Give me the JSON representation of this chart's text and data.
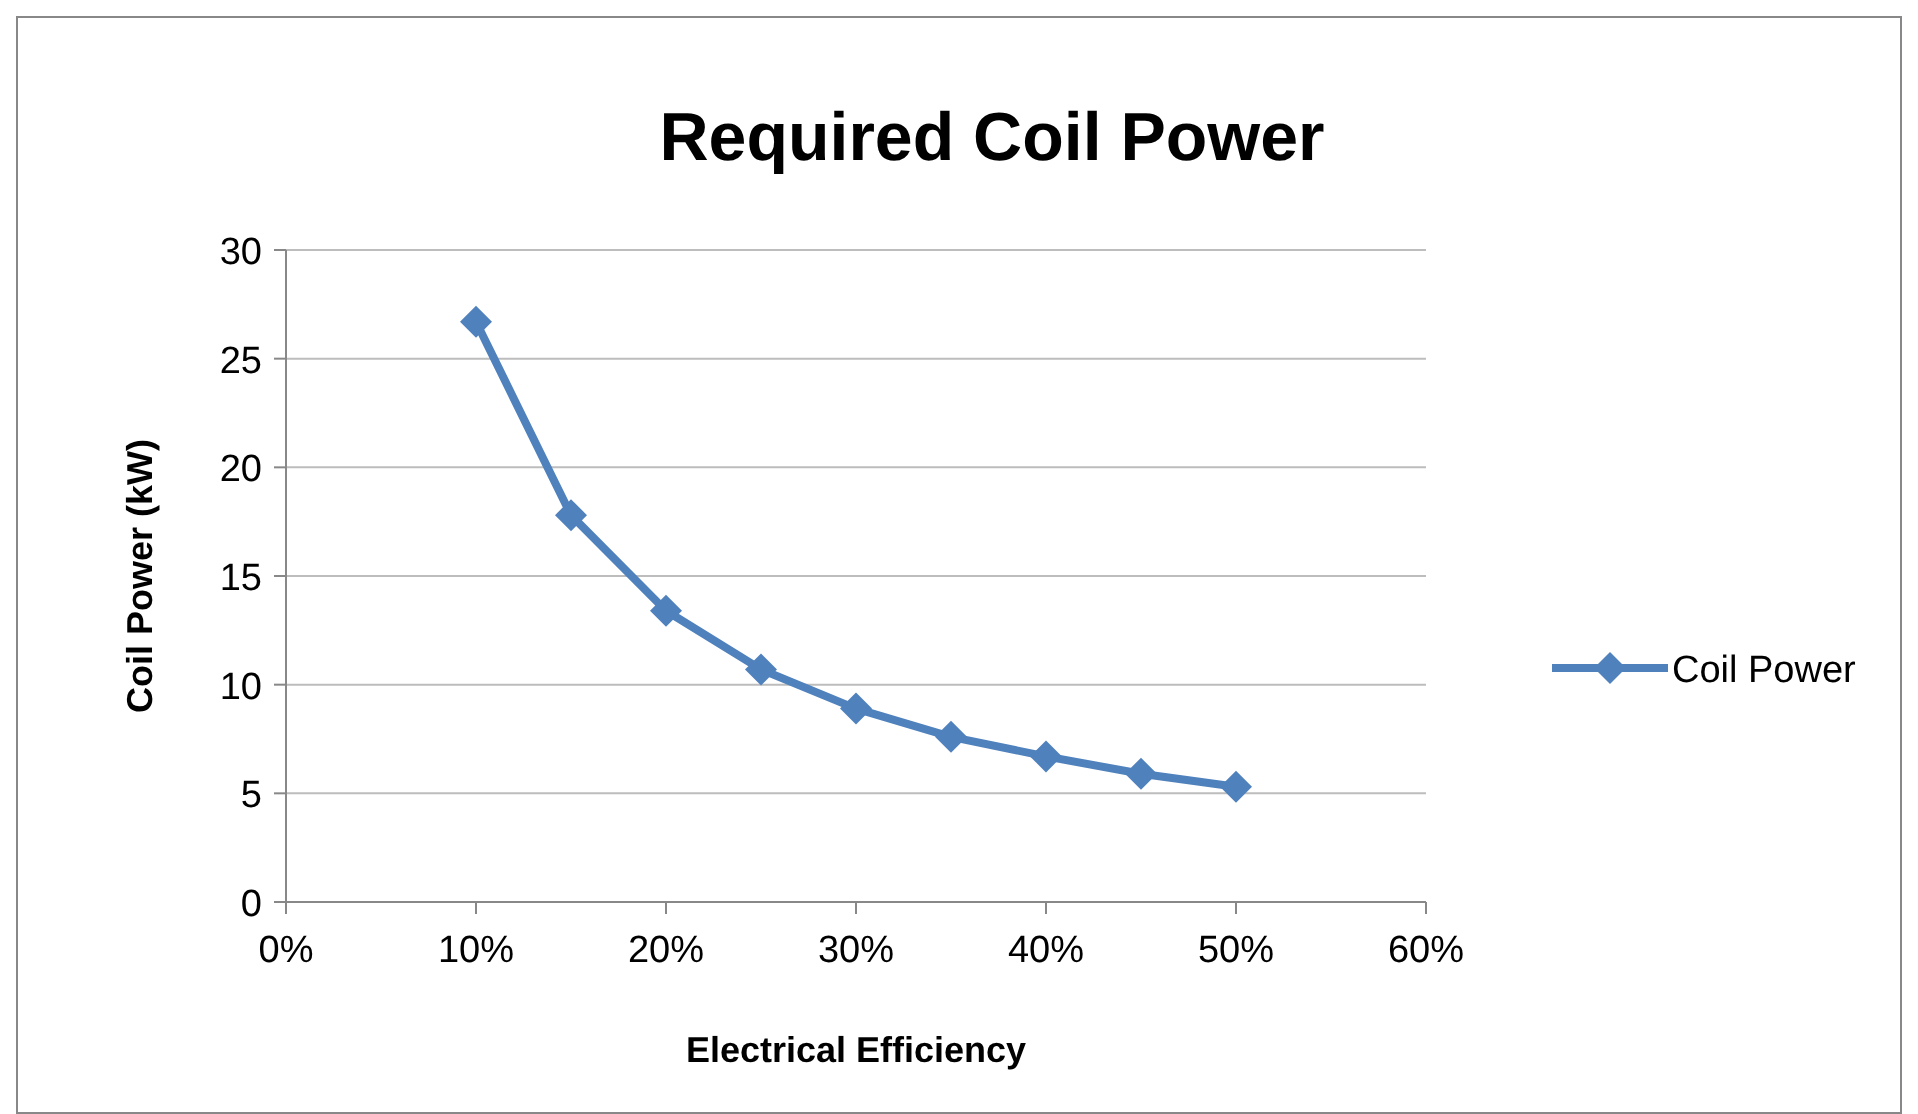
{
  "chart_data": {
    "type": "line",
    "title": "Required Coil Power",
    "xlabel": "Electrical Efficiency",
    "ylabel": "Coil Power (kW)",
    "x": [
      10,
      15,
      20,
      25,
      30,
      35,
      40,
      45,
      50
    ],
    "series": [
      {
        "name": "Coil Power",
        "color": "#4f81bd",
        "values": [
          26.7,
          17.8,
          13.4,
          10.7,
          8.9,
          7.6,
          6.7,
          5.9,
          5.3
        ]
      }
    ],
    "xlim": [
      0,
      60
    ],
    "xticks": [
      {
        "value": 0,
        "label": "0%"
      },
      {
        "value": 10,
        "label": "10%"
      },
      {
        "value": 20,
        "label": "20%"
      },
      {
        "value": 30,
        "label": "30%"
      },
      {
        "value": 40,
        "label": "40%"
      },
      {
        "value": 50,
        "label": "50%"
      },
      {
        "value": 60,
        "label": "60%"
      }
    ],
    "ylim": [
      0,
      30
    ],
    "yticks": [
      0,
      5,
      10,
      15,
      20,
      25,
      30
    ],
    "grid": "y",
    "legend": "right",
    "marker": "diamond",
    "line_style": "solid"
  }
}
